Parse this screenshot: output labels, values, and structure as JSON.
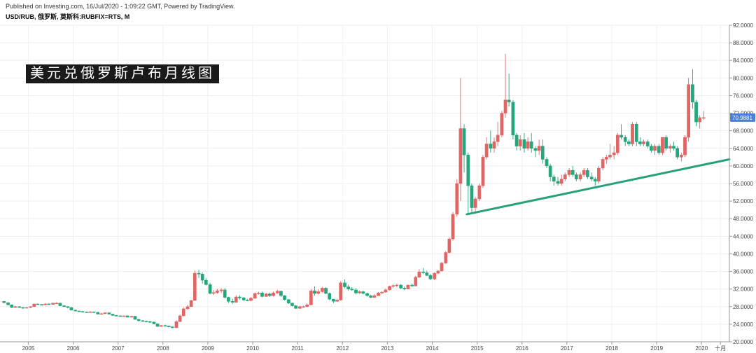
{
  "header": {
    "published": "Published on Investing.com, 16/Jul/2020 - 1:09:22 GMT, Powered by TradingView.",
    "symbol": "USD/RUB, 俄罗斯, 莫斯科:RUBFIX=RTS, M"
  },
  "banner": {
    "title": "美元兑俄罗斯卢布月线图"
  },
  "colors": {
    "up": "#e06666",
    "down": "#26a67c",
    "trendline": "#26a17b",
    "badge": "#4a7fd6"
  },
  "chart_data": {
    "type": "candlestick",
    "interval": "monthly",
    "y_ticks": [
      "92.0000",
      "88.0000",
      "84.0000",
      "80.0000",
      "76.0000",
      "72.0000",
      "68.0000",
      "64.0000",
      "60.0000",
      "56.0000",
      "52.0000",
      "48.0000",
      "44.0000",
      "40.0000",
      "36.0000",
      "32.0000",
      "28.0000",
      "24.0000",
      "20.0000"
    ],
    "x_ticks": [
      "2005",
      "2006",
      "2007",
      "2008",
      "2009",
      "2010",
      "2011",
      "2012",
      "2013",
      "2014",
      "2015",
      "2016",
      "2017",
      "2018",
      "2019",
      "2020",
      "十月"
    ],
    "ylim": [
      20,
      92
    ],
    "xlim": [
      2004.7,
      2020.95
    ],
    "current_price": "70.9881",
    "trendline": {
      "x": [
        2015.1,
        2020.95
      ],
      "y": [
        49.0,
        61.5
      ]
    },
    "candles": [
      [
        2004.79,
        29.2,
        29.3,
        28.8,
        28.9
      ],
      [
        2004.88,
        28.9,
        29.0,
        28.3,
        28.4
      ],
      [
        2004.96,
        28.4,
        28.5,
        27.7,
        27.8
      ],
      [
        2005.04,
        27.8,
        28.2,
        27.7,
        28.0
      ],
      [
        2005.13,
        28.0,
        28.1,
        27.7,
        27.8
      ],
      [
        2005.21,
        27.8,
        27.9,
        27.5,
        27.7
      ],
      [
        2005.29,
        27.7,
        27.9,
        27.6,
        27.8
      ],
      [
        2005.38,
        27.8,
        28.1,
        27.7,
        28.0
      ],
      [
        2005.46,
        28.0,
        28.7,
        27.9,
        28.6
      ],
      [
        2005.54,
        28.6,
        28.7,
        28.4,
        28.5
      ],
      [
        2005.63,
        28.5,
        28.6,
        28.3,
        28.4
      ],
      [
        2005.71,
        28.4,
        28.8,
        28.3,
        28.6
      ],
      [
        2005.79,
        28.6,
        28.8,
        28.4,
        28.5
      ],
      [
        2005.88,
        28.5,
        28.9,
        28.4,
        28.8
      ],
      [
        2005.96,
        28.8,
        29.0,
        28.7,
        28.8
      ],
      [
        2006.04,
        28.8,
        28.9,
        28.1,
        28.2
      ],
      [
        2006.13,
        28.2,
        28.3,
        27.9,
        28.0
      ],
      [
        2006.21,
        28.0,
        28.1,
        27.6,
        27.8
      ],
      [
        2006.29,
        27.8,
        27.9,
        27.1,
        27.2
      ],
      [
        2006.38,
        27.2,
        27.3,
        26.9,
        27.0
      ],
      [
        2006.46,
        27.0,
        27.1,
        26.8,
        26.9
      ],
      [
        2006.54,
        26.9,
        27.0,
        26.7,
        26.8
      ],
      [
        2006.63,
        26.8,
        26.9,
        26.6,
        26.7
      ],
      [
        2006.71,
        26.7,
        27.0,
        26.6,
        26.8
      ],
      [
        2006.79,
        26.8,
        26.9,
        26.6,
        26.7
      ],
      [
        2006.88,
        26.7,
        26.8,
        26.2,
        26.3
      ],
      [
        2006.96,
        26.3,
        26.6,
        26.2,
        26.4
      ],
      [
        2007.04,
        26.4,
        26.7,
        26.3,
        26.6
      ],
      [
        2007.13,
        26.6,
        26.7,
        26.2,
        26.3
      ],
      [
        2007.21,
        26.3,
        26.4,
        25.9,
        26.0
      ],
      [
        2007.29,
        26.0,
        26.1,
        25.8,
        25.9
      ],
      [
        2007.38,
        25.9,
        26.0,
        25.7,
        25.8
      ],
      [
        2007.46,
        25.8,
        26.0,
        25.7,
        25.9
      ],
      [
        2007.54,
        25.9,
        26.0,
        25.5,
        25.6
      ],
      [
        2007.63,
        25.6,
        25.9,
        25.5,
        25.8
      ],
      [
        2007.71,
        25.8,
        25.9,
        25.0,
        25.1
      ],
      [
        2007.79,
        25.1,
        25.2,
        24.6,
        24.8
      ],
      [
        2007.88,
        24.8,
        24.9,
        24.5,
        24.7
      ],
      [
        2007.96,
        24.7,
        24.8,
        24.4,
        24.6
      ],
      [
        2008.04,
        24.6,
        24.8,
        24.3,
        24.5
      ],
      [
        2008.13,
        24.5,
        24.6,
        24.0,
        24.1
      ],
      [
        2008.21,
        24.1,
        24.2,
        23.4,
        23.5
      ],
      [
        2008.29,
        23.5,
        23.8,
        23.4,
        23.7
      ],
      [
        2008.38,
        23.7,
        23.9,
        23.5,
        23.6
      ],
      [
        2008.46,
        23.6,
        23.7,
        23.3,
        23.4
      ],
      [
        2008.54,
        23.4,
        23.5,
        23.1,
        23.2
      ],
      [
        2008.63,
        23.2,
        24.9,
        23.1,
        24.6
      ],
      [
        2008.71,
        24.6,
        26.2,
        24.5,
        25.9
      ],
      [
        2008.79,
        25.9,
        27.8,
        25.8,
        27.5
      ],
      [
        2008.88,
        27.5,
        28.4,
        27.3,
        28.0
      ],
      [
        2008.96,
        28.0,
        29.5,
        27.9,
        29.4
      ],
      [
        2009.04,
        29.4,
        36.2,
        29.3,
        35.6
      ],
      [
        2009.13,
        35.6,
        36.4,
        34.5,
        35.4
      ],
      [
        2009.21,
        35.4,
        35.8,
        33.2,
        34.0
      ],
      [
        2009.29,
        34.0,
        34.5,
        32.8,
        33.0
      ],
      [
        2009.38,
        33.0,
        33.4,
        30.8,
        31.0
      ],
      [
        2009.46,
        31.0,
        31.8,
        30.6,
        31.2
      ],
      [
        2009.54,
        31.2,
        32.0,
        30.9,
        31.6
      ],
      [
        2009.63,
        31.6,
        32.2,
        31.1,
        31.8
      ],
      [
        2009.71,
        31.8,
        32.2,
        29.9,
        30.1
      ],
      [
        2009.79,
        30.1,
        30.3,
        28.8,
        29.2
      ],
      [
        2009.88,
        29.2,
        29.8,
        28.6,
        29.0
      ],
      [
        2009.96,
        29.0,
        30.6,
        28.8,
        30.2
      ],
      [
        2010.04,
        30.2,
        30.6,
        29.6,
        30.0
      ],
      [
        2010.13,
        30.0,
        30.2,
        29.3,
        29.5
      ],
      [
        2010.21,
        29.5,
        29.8,
        29.2,
        29.4
      ],
      [
        2010.29,
        29.4,
        30.2,
        29.2,
        29.9
      ],
      [
        2010.38,
        29.9,
        31.2,
        29.8,
        31.0
      ],
      [
        2010.46,
        31.0,
        31.4,
        30.7,
        31.1
      ],
      [
        2010.54,
        31.1,
        31.4,
        30.1,
        30.3
      ],
      [
        2010.63,
        30.3,
        31.1,
        30.2,
        30.9
      ],
      [
        2010.71,
        30.9,
        31.2,
        30.2,
        30.5
      ],
      [
        2010.79,
        30.5,
        31.4,
        30.3,
        31.1
      ],
      [
        2010.88,
        31.1,
        31.8,
        30.9,
        31.5
      ],
      [
        2010.96,
        31.5,
        31.6,
        30.2,
        30.5
      ],
      [
        2011.04,
        30.5,
        30.6,
        29.4,
        29.6
      ],
      [
        2011.13,
        29.6,
        29.7,
        28.6,
        28.8
      ],
      [
        2011.21,
        28.8,
        28.9,
        28.0,
        28.2
      ],
      [
        2011.29,
        28.2,
        28.3,
        27.5,
        27.6
      ],
      [
        2011.38,
        27.6,
        28.2,
        27.5,
        28.0
      ],
      [
        2011.46,
        28.0,
        28.2,
        27.8,
        28.0
      ],
      [
        2011.54,
        28.0,
        28.7,
        27.9,
        28.4
      ],
      [
        2011.63,
        28.4,
        32.0,
        28.3,
        31.6
      ],
      [
        2011.71,
        31.6,
        32.6,
        30.5,
        31.0
      ],
      [
        2011.79,
        31.0,
        31.9,
        30.8,
        31.4
      ],
      [
        2011.88,
        31.4,
        32.5,
        31.2,
        32.2
      ],
      [
        2011.96,
        32.2,
        32.4,
        30.8,
        31.0
      ],
      [
        2012.04,
        31.0,
        31.2,
        29.5,
        29.7
      ],
      [
        2012.13,
        29.7,
        29.8,
        28.8,
        29.2
      ],
      [
        2012.21,
        29.2,
        29.8,
        29.1,
        29.5
      ],
      [
        2012.29,
        29.5,
        33.8,
        29.4,
        33.4
      ],
      [
        2012.38,
        33.4,
        34.2,
        32.2,
        32.5
      ],
      [
        2012.46,
        32.5,
        33.0,
        31.6,
        32.0
      ],
      [
        2012.54,
        32.0,
        32.4,
        31.6,
        31.8
      ],
      [
        2012.63,
        31.8,
        32.2,
        30.8,
        31.1
      ],
      [
        2012.71,
        31.1,
        31.7,
        30.9,
        31.4
      ],
      [
        2012.79,
        31.4,
        31.6,
        30.8,
        31.0
      ],
      [
        2012.88,
        31.0,
        31.2,
        30.3,
        30.5
      ],
      [
        2012.96,
        30.5,
        30.7,
        29.9,
        30.1
      ],
      [
        2013.04,
        30.1,
        30.8,
        30.0,
        30.5
      ],
      [
        2013.13,
        30.5,
        31.3,
        30.4,
        31.1
      ],
      [
        2013.21,
        31.1,
        31.5,
        30.9,
        31.3
      ],
      [
        2013.29,
        31.3,
        32.1,
        31.2,
        31.8
      ],
      [
        2013.38,
        31.8,
        32.8,
        31.7,
        32.6
      ],
      [
        2013.46,
        32.6,
        33.1,
        32.3,
        32.8
      ],
      [
        2013.54,
        32.8,
        33.2,
        32.4,
        32.9
      ],
      [
        2013.63,
        32.9,
        33.1,
        32.0,
        32.2
      ],
      [
        2013.71,
        32.2,
        32.6,
        31.8,
        32.0
      ],
      [
        2013.79,
        32.0,
        33.0,
        31.9,
        32.9
      ],
      [
        2013.88,
        32.9,
        33.2,
        32.5,
        32.7
      ],
      [
        2013.96,
        32.7,
        35.0,
        32.6,
        34.7
      ],
      [
        2014.04,
        34.7,
        36.5,
        34.5,
        35.9
      ],
      [
        2014.13,
        35.9,
        36.8,
        35.4,
        35.7
      ],
      [
        2014.21,
        35.7,
        36.2,
        34.9,
        35.1
      ],
      [
        2014.29,
        35.1,
        35.5,
        34.0,
        34.3
      ],
      [
        2014.38,
        34.3,
        35.8,
        34.0,
        35.6
      ],
      [
        2014.46,
        35.6,
        36.3,
        35.4,
        36.1
      ],
      [
        2014.54,
        36.1,
        38.2,
        36.0,
        37.9
      ],
      [
        2014.63,
        37.9,
        40.6,
        37.7,
        40.3
      ],
      [
        2014.71,
        40.3,
        43.8,
        40.1,
        43.4
      ],
      [
        2014.79,
        43.4,
        49.5,
        43.0,
        49.0
      ],
      [
        2014.88,
        49.0,
        57.0,
        48.5,
        56.0
      ],
      [
        2014.96,
        56.0,
        80.0,
        52.0,
        68.5
      ],
      [
        2015.04,
        68.5,
        69.5,
        58.5,
        62.5
      ],
      [
        2015.13,
        62.5,
        63.0,
        49.0,
        55.5
      ],
      [
        2015.21,
        55.5,
        56.0,
        49.5,
        50.5
      ],
      [
        2015.29,
        50.5,
        53.0,
        49.5,
        52.5
      ],
      [
        2015.38,
        52.5,
        56.0,
        52.0,
        55.5
      ],
      [
        2015.46,
        55.5,
        62.5,
        55.0,
        62.0
      ],
      [
        2015.54,
        62.0,
        66.5,
        61.5,
        65.0
      ],
      [
        2015.63,
        65.0,
        68.0,
        63.0,
        64.0
      ],
      [
        2015.71,
        64.0,
        66.5,
        63.0,
        65.5
      ],
      [
        2015.79,
        65.5,
        70.0,
        64.5,
        67.0
      ],
      [
        2015.88,
        67.0,
        72.5,
        66.5,
        72.0
      ],
      [
        2015.96,
        72.0,
        85.5,
        71.0,
        75.0
      ],
      [
        2016.04,
        75.0,
        81.0,
        73.5,
        74.5
      ],
      [
        2016.13,
        74.5,
        75.0,
        66.0,
        67.0
      ],
      [
        2016.21,
        67.0,
        67.5,
        63.5,
        64.5
      ],
      [
        2016.29,
        64.5,
        67.0,
        63.5,
        66.0
      ],
      [
        2016.38,
        66.0,
        67.5,
        63.0,
        64.0
      ],
      [
        2016.46,
        64.0,
        66.5,
        63.5,
        65.5
      ],
      [
        2016.54,
        65.5,
        67.5,
        63.0,
        64.0
      ],
      [
        2016.63,
        64.0,
        64.5,
        62.0,
        63.5
      ],
      [
        2016.71,
        63.5,
        66.0,
        62.5,
        64.5
      ],
      [
        2016.79,
        64.5,
        66.0,
        60.5,
        61.5
      ],
      [
        2016.88,
        61.5,
        62.0,
        59.5,
        60.0
      ],
      [
        2016.96,
        60.0,
        60.5,
        56.5,
        57.5
      ],
      [
        2017.04,
        57.5,
        58.0,
        55.5,
        56.5
      ],
      [
        2017.13,
        56.5,
        57.5,
        55.5,
        56.0
      ],
      [
        2017.21,
        56.0,
        58.0,
        55.5,
        57.0
      ],
      [
        2017.29,
        57.0,
        58.5,
        56.5,
        58.0
      ],
      [
        2017.38,
        58.0,
        59.5,
        57.5,
        59.0
      ],
      [
        2017.46,
        59.0,
        60.0,
        57.5,
        58.0
      ],
      [
        2017.54,
        58.0,
        58.5,
        56.5,
        57.0
      ],
      [
        2017.63,
        57.0,
        58.5,
        56.5,
        58.0
      ],
      [
        2017.71,
        58.0,
        59.5,
        57.5,
        59.0
      ],
      [
        2017.79,
        59.0,
        59.5,
        57.0,
        57.5
      ],
      [
        2017.88,
        57.5,
        58.5,
        56.5,
        57.0
      ],
      [
        2017.96,
        57.0,
        57.5,
        55.5,
        56.5
      ],
      [
        2018.04,
        56.5,
        60.0,
        56.0,
        59.5
      ],
      [
        2018.13,
        59.5,
        62.0,
        59.0,
        61.5
      ],
      [
        2018.21,
        61.5,
        62.5,
        60.5,
        62.0
      ],
      [
        2018.29,
        62.0,
        65.0,
        61.5,
        62.5
      ],
      [
        2018.38,
        62.5,
        64.5,
        61.5,
        63.0
      ],
      [
        2018.46,
        63.0,
        67.5,
        62.5,
        67.0
      ],
      [
        2018.54,
        67.0,
        69.5,
        66.0,
        66.5
      ],
      [
        2018.63,
        66.5,
        67.0,
        64.5,
        65.5
      ],
      [
        2018.71,
        65.5,
        66.0,
        64.5,
        65.0
      ],
      [
        2018.79,
        65.0,
        70.0,
        64.5,
        69.5
      ],
      [
        2018.88,
        69.5,
        70.0,
        64.5,
        65.5
      ],
      [
        2018.96,
        65.5,
        66.5,
        64.5,
        65.0
      ],
      [
        2019.04,
        65.0,
        66.0,
        64.5,
        65.5
      ],
      [
        2019.13,
        65.5,
        66.0,
        64.0,
        64.5
      ],
      [
        2019.21,
        64.5,
        65.0,
        63.0,
        63.5
      ],
      [
        2019.29,
        63.5,
        65.0,
        62.5,
        64.5
      ],
      [
        2019.38,
        64.5,
        65.0,
        62.5,
        63.0
      ],
      [
        2019.46,
        63.0,
        66.5,
        62.5,
        66.5
      ],
      [
        2019.54,
        66.5,
        67.0,
        63.5,
        64.0
      ],
      [
        2019.63,
        64.0,
        65.0,
        63.0,
        64.5
      ],
      [
        2019.71,
        64.5,
        65.5,
        63.5,
        64.0
      ],
      [
        2019.79,
        64.0,
        64.5,
        61.5,
        62.0
      ],
      [
        2019.88,
        62.0,
        63.0,
        61.0,
        62.5
      ],
      [
        2019.96,
        62.5,
        67.0,
        62.0,
        66.5
      ],
      [
        2020.04,
        66.5,
        80.0,
        65.5,
        78.5
      ],
      [
        2020.13,
        78.5,
        82.0,
        73.0,
        74.5
      ],
      [
        2020.21,
        74.5,
        75.0,
        69.0,
        70.0
      ],
      [
        2020.29,
        70.0,
        71.5,
        68.5,
        71.0
      ],
      [
        2020.38,
        71.0,
        72.5,
        70.5,
        71.0
      ]
    ]
  }
}
